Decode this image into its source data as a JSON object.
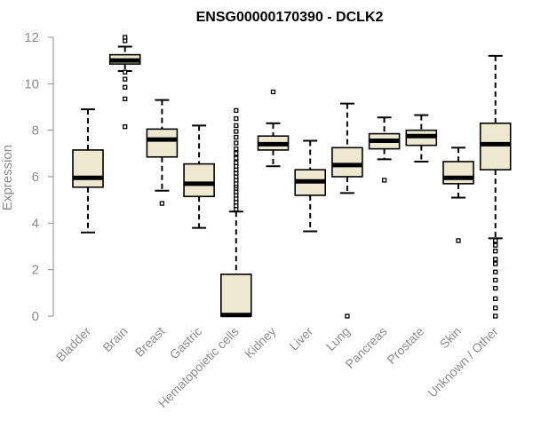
{
  "chart_data": {
    "type": "boxplot",
    "title": "ENSG00000170390 - DCLK2",
    "xlabel": "",
    "ylabel": "Expression",
    "ylim": [
      0,
      12
    ],
    "yticks": [
      0,
      2,
      4,
      6,
      8,
      10,
      12
    ],
    "box_fill": "#efe8d0",
    "categories": [
      "Bladder",
      "Brain",
      "Breast",
      "Gastric",
      "Hematopoietic cells",
      "Kidney",
      "Liver",
      "Lung",
      "Pancreas",
      "Prostate",
      "Skin",
      "Unknown / Other"
    ],
    "series": [
      {
        "name": "Bladder",
        "whisker_low": 3.6,
        "q1": 5.55,
        "median": 5.95,
        "q3": 7.15,
        "whisker_high": 8.9,
        "outliers": []
      },
      {
        "name": "Brain",
        "whisker_low": 10.55,
        "q1": 10.85,
        "median": 11.0,
        "q3": 11.25,
        "whisker_high": 11.6,
        "outliers": [
          8.15,
          9.35,
          9.85,
          10.2,
          10.5,
          11.85,
          12.0
        ]
      },
      {
        "name": "Breast",
        "whisker_low": 5.4,
        "q1": 6.85,
        "median": 7.6,
        "q3": 8.05,
        "whisker_high": 9.3,
        "outliers": [
          4.85
        ]
      },
      {
        "name": "Gastric",
        "whisker_low": 3.8,
        "q1": 5.15,
        "median": 5.7,
        "q3": 6.55,
        "whisker_high": 8.2,
        "outliers": []
      },
      {
        "name": "Hematopoietic cells",
        "whisker_low": 0.0,
        "q1": 0.0,
        "median": 0.05,
        "q3": 1.8,
        "whisker_high": 4.5,
        "outliers": [
          4.6,
          4.75,
          4.9,
          5.05,
          5.2,
          5.35,
          5.5,
          5.6,
          5.7,
          5.85,
          6.0,
          6.15,
          6.3,
          6.45,
          6.6,
          6.8,
          7.0,
          7.2,
          7.45,
          7.7,
          7.95,
          8.2,
          8.5,
          8.85
        ]
      },
      {
        "name": "Kidney",
        "whisker_low": 6.45,
        "q1": 7.15,
        "median": 7.4,
        "q3": 7.75,
        "whisker_high": 8.3,
        "outliers": [
          9.65
        ]
      },
      {
        "name": "Liver",
        "whisker_low": 3.65,
        "q1": 5.2,
        "median": 5.8,
        "q3": 6.3,
        "whisker_high": 7.55,
        "outliers": []
      },
      {
        "name": "Lung",
        "whisker_low": 5.3,
        "q1": 6.0,
        "median": 6.5,
        "q3": 7.25,
        "whisker_high": 9.15,
        "outliers": [
          0.0
        ]
      },
      {
        "name": "Pancreas",
        "whisker_low": 6.75,
        "q1": 7.2,
        "median": 7.55,
        "q3": 7.85,
        "whisker_high": 8.55,
        "outliers": [
          5.85
        ]
      },
      {
        "name": "Prostate",
        "whisker_low": 6.65,
        "q1": 7.35,
        "median": 7.75,
        "q3": 8.0,
        "whisker_high": 8.65,
        "outliers": []
      },
      {
        "name": "Skin",
        "whisker_low": 5.1,
        "q1": 5.7,
        "median": 5.95,
        "q3": 6.65,
        "whisker_high": 7.25,
        "outliers": [
          3.25
        ]
      },
      {
        "name": "Unknown / Other",
        "whisker_low": 3.35,
        "q1": 6.3,
        "median": 7.4,
        "q3": 8.3,
        "whisker_high": 11.2,
        "outliers": [
          0.0,
          0.35,
          0.75,
          1.2,
          1.55,
          1.9,
          2.25,
          2.45,
          2.8,
          3.05,
          3.25
        ]
      }
    ]
  }
}
